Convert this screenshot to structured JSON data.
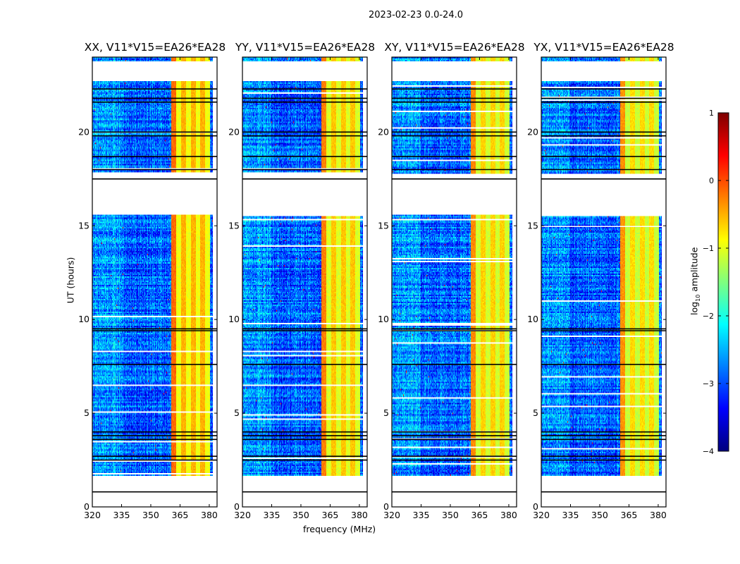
{
  "chart_data": {
    "type": "heatmap",
    "title": "2023-02-23 0.0-24.0",
    "xlabel": "frequency (MHz)",
    "ylabel": "UT (hours)",
    "xlim": [
      320,
      384
    ],
    "ylim": [
      0,
      24
    ],
    "xticks": [
      "320",
      "335",
      "350",
      "365",
      "380"
    ],
    "xtick_values": [
      320,
      335,
      350,
      365,
      380
    ],
    "yticks": [
      "0",
      "5",
      "10",
      "15",
      "20"
    ],
    "ytick_values": [
      0,
      5,
      10,
      15,
      20
    ],
    "panels": [
      {
        "title": "XX, V11*V15=EA26*EA28",
        "seed": 11,
        "band_level": -0.6
      },
      {
        "title": "YY, V11*V15=EA26*EA28",
        "seed": 23,
        "band_level": -0.7
      },
      {
        "title": "XY, V11*V15=EA26*EA28",
        "seed": 37,
        "band_level": -0.75
      },
      {
        "title": "YX, V11*V15=EA26*EA28",
        "seed": 53,
        "band_level": -0.8
      }
    ],
    "flagged_hours": [
      [
        0,
        1.65
      ],
      [
        15.6,
        17.8
      ],
      [
        22.7,
        23.75
      ]
    ],
    "flag_lines_hours": [
      0.8,
      2.5,
      2.7,
      3.6,
      3.8,
      4.0,
      7.6,
      9.4,
      9.5,
      17.5,
      18.0,
      18.7,
      19.8,
      20.0,
      21.6,
      21.8,
      22.3
    ],
    "rfi_band_mhz": [
      360.5,
      380.5
    ],
    "background_level": -2.9,
    "colorbar": {
      "label_main": "log",
      "label_sub": "10",
      "label_rest": " amplitude",
      "range": [
        -4,
        1
      ],
      "ticks": [
        "1",
        "0",
        "−1",
        "−2",
        "−3",
        "−4"
      ],
      "tick_values": [
        1,
        0,
        -1,
        -2,
        -3,
        -4
      ],
      "colormap": "jet"
    }
  }
}
